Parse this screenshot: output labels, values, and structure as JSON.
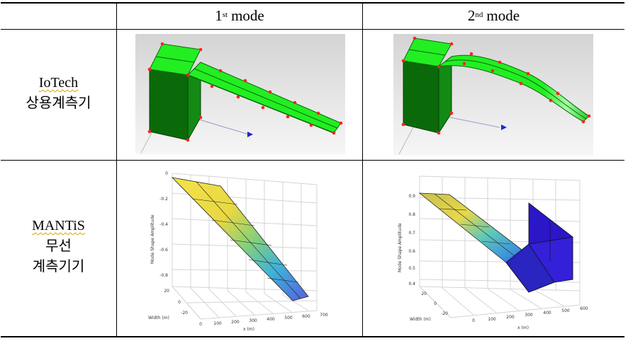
{
  "table": {
    "columns": [
      {
        "sup": "st",
        "base": "1",
        "word": "mode"
      },
      {
        "sup": "nd",
        "base": "2",
        "word": "mode"
      }
    ],
    "rows": [
      {
        "lines": [
          "IoTech",
          "상용계측기"
        ]
      },
      {
        "lines": [
          "MANTiS",
          "무선",
          "계측기기"
        ]
      }
    ]
  },
  "plots": {
    "mode1": {
      "zlabel": "Mode Shape Amplitude",
      "zticks": [
        "0",
        "-0.2",
        "-0.4",
        "-0.6",
        "-0.8"
      ],
      "xlabel": "x (m)",
      "xticks": [
        "0",
        "100",
        "200",
        "300",
        "400",
        "500",
        "600",
        "700"
      ],
      "ylabel": "Width (m)",
      "yticks": [
        "20",
        "0",
        "-20"
      ]
    },
    "mode2": {
      "zlabel": "Mode Shape Amplitude",
      "zticks": [
        "0.9",
        "0.8",
        "0.7",
        "0.6",
        "0.5",
        "0.4"
      ],
      "xlabel": "x (m)",
      "xticks": [
        "0",
        "100",
        "200",
        "300",
        "400",
        "500",
        "600"
      ],
      "ylabel": "Width (m)",
      "yticks": [
        "20",
        "0",
        "-20"
      ]
    }
  },
  "colors": {
    "fe_green": "#22ee22",
    "fe_dark_green": "#0a6a0a",
    "fe_node": "#ff2222",
    "surf_high": "#f2e040",
    "surf_low": "#5560e0",
    "box_blue": "#2b16c8"
  }
}
